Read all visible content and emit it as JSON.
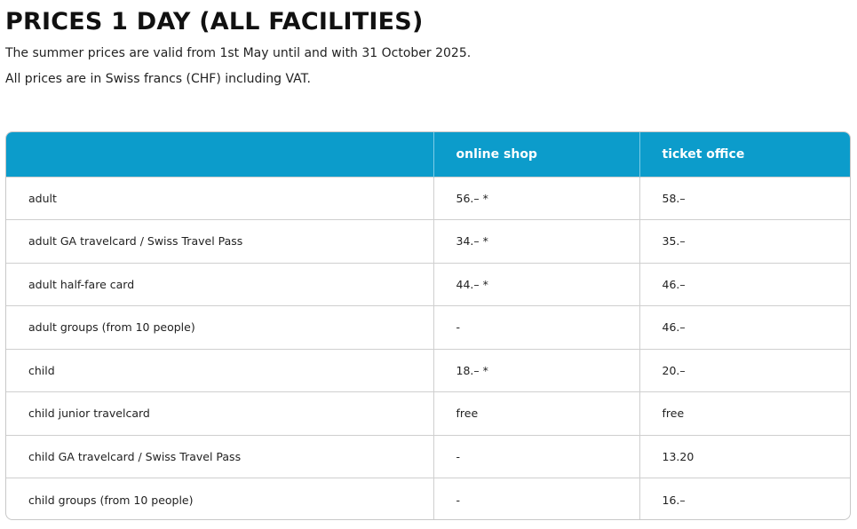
{
  "title": "PRICES 1 DAY (ALL FACILITIES)",
  "intro": [
    "The summer prices are valid from 1st May until and with 31 October 2025.",
    "All prices are in Swiss francs (CHF) including VAT."
  ],
  "table": {
    "headers": [
      "",
      "online shop",
      "ticket office"
    ],
    "header_color": "#0c9ccb",
    "rows": [
      [
        "adult",
        "56.– *",
        "58.–"
      ],
      [
        "adult GA travelcard / Swiss Travel Pass",
        "34.– *",
        "35.–"
      ],
      [
        "adult half-fare card",
        "44.– *",
        "46.–"
      ],
      [
        "adult groups (from 10 people)",
        "-",
        "46.–"
      ],
      [
        "child",
        "18.– *",
        "20.–"
      ],
      [
        "child junior travelcard",
        "free",
        "free"
      ],
      [
        "child GA travelcard / Swiss Travel Pass",
        "-",
        "13.20"
      ],
      [
        "child groups (from 10 people)",
        "-",
        "16.–"
      ]
    ]
  }
}
